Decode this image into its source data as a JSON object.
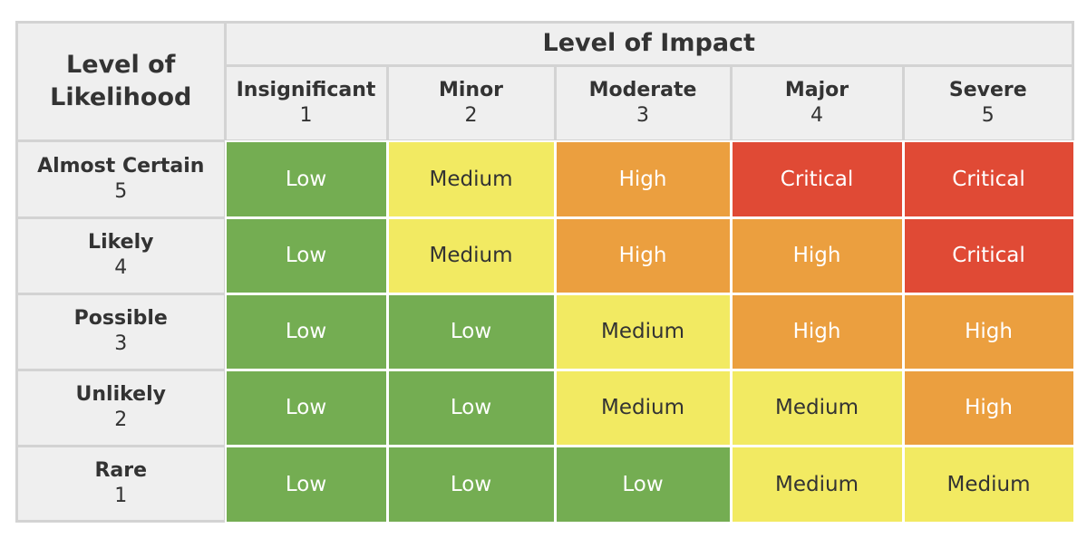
{
  "table": {
    "corner": "Level of Likelihood",
    "impact_header": "Level of Impact",
    "columns": [
      {
        "name": "Insignificant",
        "number": 1
      },
      {
        "name": "Minor",
        "number": 2
      },
      {
        "name": "Moderate",
        "number": 3
      },
      {
        "name": "Major",
        "number": 4
      },
      {
        "name": "Severe",
        "number": 5
      }
    ],
    "rows": [
      {
        "name": "Almost Certain",
        "number": 5,
        "cells": [
          {
            "text": "Low",
            "color": "#74ad52"
          },
          {
            "text": "Medium",
            "color": "#f2ea62"
          },
          {
            "text": "High",
            "color": "#eb9f3f"
          },
          {
            "text": "Critical",
            "color": "#e04a35"
          },
          {
            "text": "Critical",
            "color": "#e04a35"
          }
        ]
      },
      {
        "name": "Likely",
        "number": 4,
        "cells": [
          {
            "text": "Low",
            "color": "#74ad52"
          },
          {
            "text": "Medium",
            "color": "#f2ea62"
          },
          {
            "text": "High",
            "color": "#eb9f3f"
          },
          {
            "text": "High",
            "color": "#eb9f3f"
          },
          {
            "text": "Critical",
            "color": "#e04a35"
          }
        ]
      },
      {
        "name": "Possible",
        "number": 3,
        "cells": [
          {
            "text": "Low",
            "color": "#74ad52"
          },
          {
            "text": "Low",
            "color": "#74ad52"
          },
          {
            "text": "Medium",
            "color": "#f2ea62"
          },
          {
            "text": "High",
            "color": "#eb9f3f"
          },
          {
            "text": "High",
            "color": "#eb9f3f"
          }
        ]
      },
      {
        "name": "Unlikely",
        "number": 2,
        "cells": [
          {
            "text": "Low",
            "color": "#74ad52"
          },
          {
            "text": "Low",
            "color": "#74ad52"
          },
          {
            "text": "Medium",
            "color": "#f2ea62"
          },
          {
            "text": "Medium",
            "color": "#f2ea62"
          },
          {
            "text": "High",
            "color": "#eb9f3f"
          }
        ]
      },
      {
        "name": "Rare",
        "number": 1,
        "cells": [
          {
            "text": "Low",
            "color": "#74ad52"
          },
          {
            "text": "Low",
            "color": "#74ad52"
          },
          {
            "text": "Low",
            "color": "#74ad52"
          },
          {
            "text": "Medium",
            "color": "#f2ea62"
          },
          {
            "text": "Medium",
            "color": "#f2ea62"
          }
        ]
      }
    ]
  }
}
